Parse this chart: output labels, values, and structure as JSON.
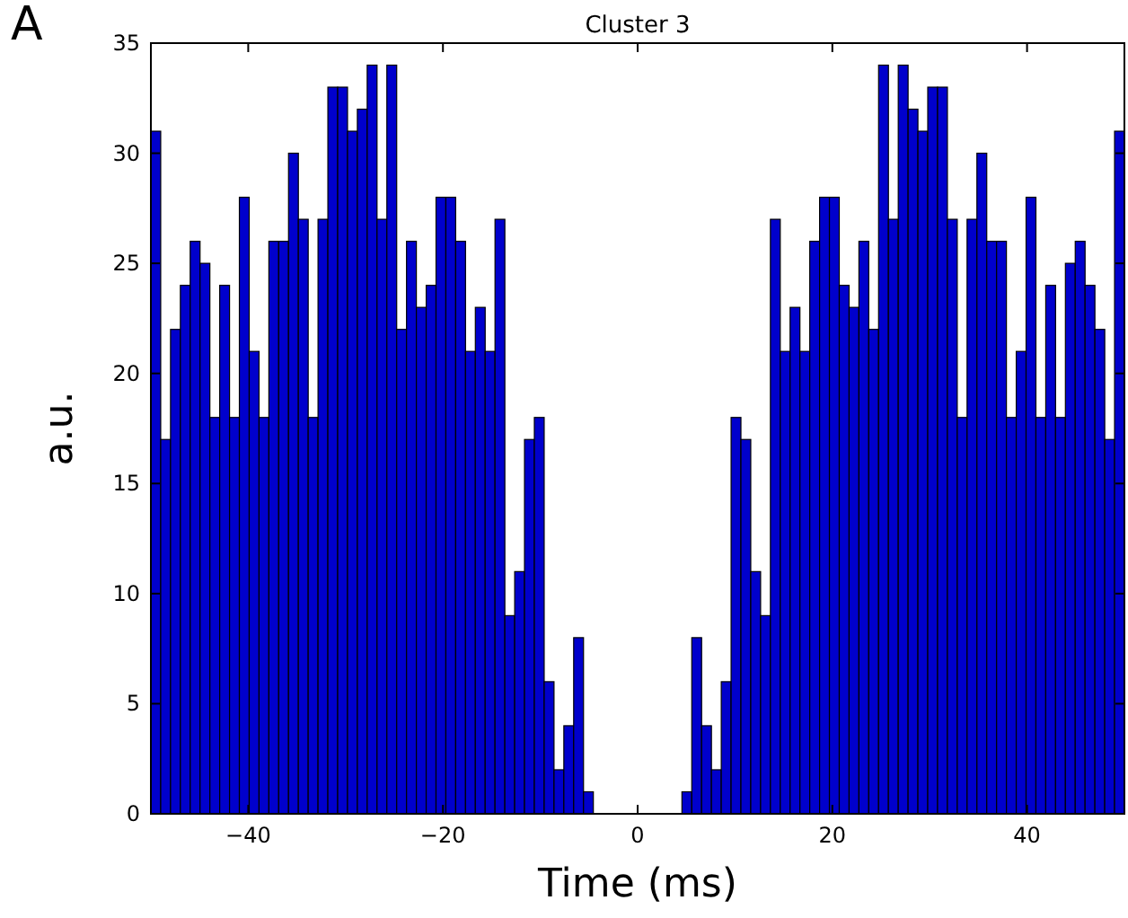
{
  "chart_data": {
    "type": "histogram",
    "title": "Cluster 3",
    "xlabel": "Time (ms)",
    "ylabel": "a.u.",
    "annotations": [
      "A"
    ],
    "bins": [
      -50,
      -48.99,
      -47.98,
      -46.97,
      -45.96,
      -44.95,
      -43.94,
      -42.93,
      -41.92,
      -40.91,
      -39.9,
      -38.89,
      -37.88,
      -36.87,
      -35.86,
      -34.85,
      -33.84,
      -32.83,
      -31.82,
      -30.81,
      -29.8,
      -28.79,
      -27.78,
      -26.77,
      -25.76,
      -24.75,
      -23.74,
      -22.73,
      -21.72,
      -20.71,
      -19.7,
      -18.69,
      -17.68,
      -16.67,
      -15.66,
      -14.65,
      -13.64,
      -12.63,
      -11.62,
      -10.61,
      -9.6,
      -8.59,
      -7.58,
      -6.57,
      -5.56,
      -4.55,
      -3.54,
      -2.53,
      -1.52,
      -0.51,
      0.51,
      1.52,
      2.53,
      3.54,
      4.55,
      5.56,
      6.57,
      7.58,
      8.59,
      9.6,
      10.61,
      11.62,
      12.63,
      13.64,
      14.65,
      15.66,
      16.67,
      17.68,
      18.69,
      19.7,
      20.71,
      21.72,
      22.73,
      23.74,
      24.75,
      25.76,
      26.77,
      27.78,
      28.79,
      29.8,
      30.81,
      31.82,
      32.83,
      33.84,
      34.85,
      35.86,
      36.87,
      37.88,
      38.89,
      39.9,
      40.91,
      41.92,
      42.93,
      43.94,
      44.95,
      45.96,
      46.97,
      47.98,
      48.99,
      50
    ],
    "values": [
      31,
      17,
      22,
      24,
      26,
      25,
      18,
      24,
      18,
      28,
      21,
      18,
      26,
      26,
      30,
      27,
      18,
      27,
      33,
      33,
      31,
      32,
      34,
      27,
      34,
      22,
      26,
      23,
      24,
      28,
      28,
      26,
      21,
      23,
      21,
      27,
      9,
      11,
      17,
      18,
      6,
      2,
      4,
      8,
      1,
      0,
      0,
      0,
      0,
      0,
      0,
      0,
      0,
      0,
      1,
      8,
      4,
      2,
      6,
      18,
      17,
      11,
      9,
      27,
      21,
      23,
      21,
      26,
      28,
      28,
      24,
      23,
      26,
      22,
      34,
      27,
      34,
      32,
      31,
      33,
      33,
      27,
      18,
      27,
      30,
      26,
      26,
      18,
      21,
      28,
      18,
      24,
      18,
      25,
      26,
      24,
      22,
      17,
      31
    ],
    "color": "#0000cc",
    "xlim": [
      -50,
      50
    ],
    "ylim": [
      0,
      35
    ],
    "xticks": [
      -40,
      -20,
      0,
      20,
      40
    ],
    "yticks": [
      0,
      5,
      10,
      15,
      20,
      25,
      30,
      35
    ]
  }
}
